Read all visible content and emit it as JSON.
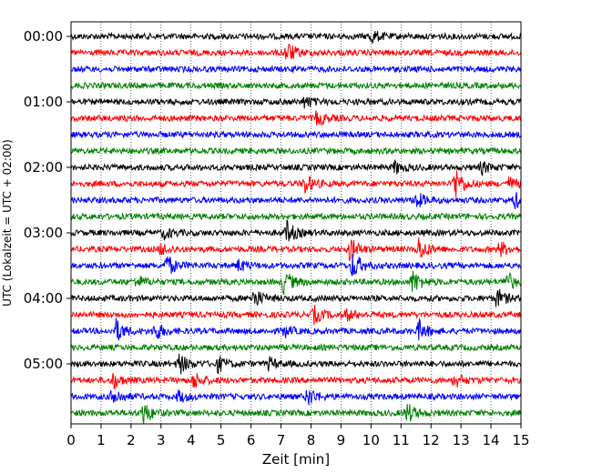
{
  "chart_data": {
    "type": "line",
    "title": "",
    "xlabel": "Zeit  [min]",
    "ylabel": "UTC (Lokalzeit = UTC + 02:00)",
    "xlim": [
      0,
      15
    ],
    "x_ticks": [
      0,
      1,
      2,
      3,
      4,
      5,
      6,
      7,
      8,
      9,
      10,
      11,
      12,
      13,
      14,
      15
    ],
    "y_tick_labels": [
      "00:00",
      "01:00",
      "02:00",
      "03:00",
      "04:00",
      "05:00"
    ],
    "trace_interval_min": 15,
    "trace_colors": [
      "#000000",
      "#ff0000",
      "#0000ff",
      "#008000"
    ],
    "grid": "vertical dotted lines at each minute",
    "traces": [
      {
        "start": "00:00",
        "color": "#000000",
        "events": [
          [
            10.0,
            1.8
          ]
        ]
      },
      {
        "start": "00:15",
        "color": "#ff0000",
        "events": [
          [
            7.2,
            2.8
          ]
        ]
      },
      {
        "start": "00:30",
        "color": "#0000ff",
        "events": []
      },
      {
        "start": "00:45",
        "color": "#008000",
        "events": []
      },
      {
        "start": "01:00",
        "color": "#000000",
        "events": [
          [
            7.8,
            1.5
          ]
        ]
      },
      {
        "start": "01:15",
        "color": "#ff0000",
        "events": [
          [
            8.2,
            2.0
          ]
        ]
      },
      {
        "start": "01:30",
        "color": "#0000ff",
        "events": []
      },
      {
        "start": "01:45",
        "color": "#008000",
        "events": []
      },
      {
        "start": "02:00",
        "color": "#000000",
        "events": [
          [
            10.8,
            1.6
          ],
          [
            13.7,
            1.5
          ]
        ]
      },
      {
        "start": "02:15",
        "color": "#ff0000",
        "events": [
          [
            7.8,
            2.6
          ],
          [
            12.8,
            4.5
          ],
          [
            14.6,
            1.6
          ]
        ]
      },
      {
        "start": "02:30",
        "color": "#0000ff",
        "events": [
          [
            11.5,
            2.2
          ],
          [
            14.8,
            2.0
          ]
        ]
      },
      {
        "start": "02:45",
        "color": "#008000",
        "events": []
      },
      {
        "start": "03:00",
        "color": "#000000",
        "events": [
          [
            7.2,
            3.0
          ],
          [
            3.1,
            1.4
          ]
        ]
      },
      {
        "start": "03:15",
        "color": "#ff0000",
        "events": [
          [
            9.3,
            3.0
          ],
          [
            11.6,
            3.2
          ],
          [
            14.3,
            2.0
          ],
          [
            3.0,
            1.5
          ]
        ]
      },
      {
        "start": "03:30",
        "color": "#0000ff",
        "events": [
          [
            3.2,
            2.8
          ],
          [
            9.4,
            3.6
          ],
          [
            5.6,
            1.5
          ]
        ]
      },
      {
        "start": "03:45",
        "color": "#008000",
        "events": [
          [
            7.1,
            3.2
          ],
          [
            11.4,
            3.0
          ],
          [
            14.5,
            2.8
          ],
          [
            2.2,
            1.5
          ]
        ]
      },
      {
        "start": "04:00",
        "color": "#000000",
        "events": [
          [
            6.1,
            2.5
          ],
          [
            14.2,
            2.5
          ]
        ]
      },
      {
        "start": "04:15",
        "color": "#ff0000",
        "events": [
          [
            8.1,
            2.2
          ],
          [
            9.2,
            1.4
          ]
        ]
      },
      {
        "start": "04:30",
        "color": "#0000ff",
        "events": [
          [
            1.5,
            3.0
          ],
          [
            2.8,
            2.4
          ],
          [
            11.6,
            2.6
          ],
          [
            7.1,
            1.5
          ]
        ]
      },
      {
        "start": "04:45",
        "color": "#008000",
        "events": []
      },
      {
        "start": "05:00",
        "color": "#000000",
        "events": [
          [
            3.6,
            2.8
          ],
          [
            4.9,
            2.0
          ],
          [
            6.6,
            1.6
          ]
        ]
      },
      {
        "start": "05:15",
        "color": "#ff0000",
        "events": [
          [
            1.4,
            2.2
          ],
          [
            4.1,
            2.2
          ],
          [
            12.8,
            1.8
          ]
        ]
      },
      {
        "start": "05:30",
        "color": "#0000ff",
        "events": [
          [
            1.4,
            2.4
          ],
          [
            7.9,
            2.4
          ],
          [
            3.6,
            1.5
          ]
        ]
      },
      {
        "start": "05:45",
        "color": "#008000",
        "events": [
          [
            2.4,
            3.0
          ],
          [
            11.2,
            2.6
          ]
        ]
      }
    ]
  }
}
